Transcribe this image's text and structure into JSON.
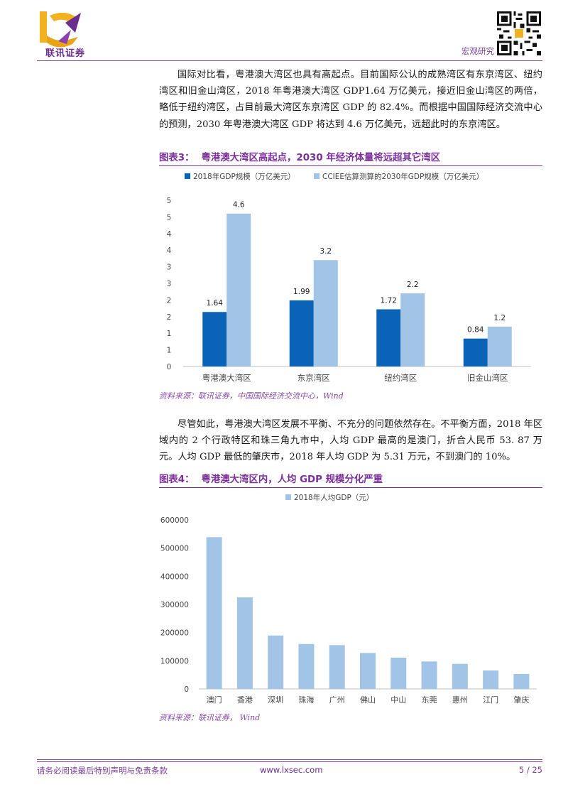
{
  "header": {
    "logo_text": "联讯证券",
    "section": "宏观研究"
  },
  "colors": {
    "accent": "#7a2f9a",
    "dark_bar": "#0b63b8",
    "light_bar": "#a2c4e6"
  },
  "paragraphs": [
    "国际对比看，粤港澳大湾区也具有高起点。目前国际公认的成熟湾区有东京湾区、纽约湾区和旧金山湾区，2018 年粤港澳大湾区 GDP1.64 万亿美元，接近旧金山湾区的两倍，略低于纽约湾区，占目前最大湾区东京湾区 GDP 的 82.4%。而根据中国国际经济交流中心的预测，2030 年粤港澳大湾区 GDP 将达到 4.6 万亿美元，远超此时的东京湾区。",
    "尽管如此，粤港澳大湾区发展不平衡、不充分的问题依然存在。不平衡方面，2018 年区域内的 2 个行政特区和珠三角九市中，人均 GDP 最高的是澳门，折合人民币 53. 87 万元。人均 GDP 最低的肇庆市，2018 年人均 GDP 为 5.31 万元，不到澳门的 10%。"
  ],
  "figures": [
    {
      "number": "图表3：",
      "title": "粤港澳大湾区高起点，2030 年经济体量将远超其它湾区",
      "source": "资料来源：联讯证券，中国国际经济交流中心，Wind"
    },
    {
      "number": "图表4：",
      "title": "粤港澳大湾区内，人均 GDP 规模分化严重",
      "source": "资料来源：联讯证券，  Wind"
    }
  ],
  "chart_data": [
    {
      "type": "bar",
      "categories": [
        "粤港澳大湾区",
        "东京湾区",
        "纽约湾区",
        "旧金山湾区"
      ],
      "series": [
        {
          "name": "2018年GDP规模（万亿美元）",
          "values": [
            1.64,
            1.99,
            1.72,
            0.84
          ],
          "labels": [
            "1.64",
            "1.99",
            "1.72",
            "0.84"
          ]
        },
        {
          "name": "CCIEE估算测算的2030年GDP规模（万亿美元）",
          "values": [
            4.6,
            3.2,
            2.2,
            1.2
          ],
          "labels": [
            "4.6",
            "3.2",
            "2.2",
            "1.2"
          ]
        }
      ],
      "y_ticks": [
        "0",
        "1",
        "1",
        "2",
        "2",
        "3",
        "3",
        "4",
        "4",
        "5",
        "5"
      ],
      "ylim": [
        0,
        5
      ],
      "legend": "top"
    },
    {
      "type": "bar",
      "categories": [
        "澳门",
        "香港",
        "深圳",
        "珠海",
        "广州",
        "佛山",
        "中山",
        "东莞",
        "惠州",
        "江门",
        "肇庆"
      ],
      "series": [
        {
          "name": "2018年人均GDP（元）",
          "values": [
            538700,
            325000,
            189600,
            159400,
            155500,
            127700,
            111000,
            97500,
            89000,
            65600,
            53100
          ]
        }
      ],
      "y_ticks": [
        "0",
        "100000",
        "200000",
        "300000",
        "400000",
        "500000",
        "600000"
      ],
      "ylim": [
        0,
        600000
      ],
      "legend": "top"
    }
  ],
  "footer": {
    "disclaimer": "请务必阅读最后特别声明与免责条款",
    "url": "www.lxsec.com",
    "page": "5 / 25"
  }
}
